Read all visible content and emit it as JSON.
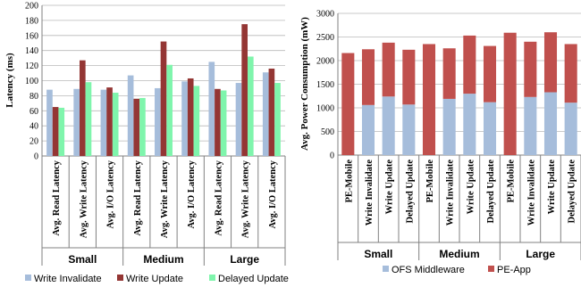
{
  "chart_data": [
    {
      "type": "bar",
      "ylabel": "Latency (ms)",
      "ylim": [
        0,
        200
      ],
      "ytick_step": 20,
      "grid": true,
      "legend_position": "bottom",
      "groups": [
        "Small",
        "Medium",
        "Large"
      ],
      "categories": [
        "Avg. Read Latency",
        "Avg. Write Latency",
        "Avg. I/O Latency",
        "Avg. Read Latency",
        "Avg. Write Latency",
        "Avg. I/O Latency",
        "Avg. Read Latency",
        "Avg. Write Latency",
        "Avg. I/O Latency"
      ],
      "series": [
        {
          "name": "Write Invalidate",
          "color": "#A6BDDB",
          "values": [
            88,
            89,
            88,
            107,
            90,
            99,
            125,
            97,
            111
          ]
        },
        {
          "name": "Write Update",
          "color": "#943634",
          "values": [
            65,
            127,
            91,
            76,
            152,
            103,
            89,
            175,
            116
          ]
        },
        {
          "name": "Delayed Update",
          "color": "#7FF5AC",
          "values": [
            64,
            98,
            84,
            77,
            121,
            93,
            87,
            132,
            97
          ]
        }
      ]
    },
    {
      "type": "bar",
      "stacked": true,
      "ylabel": "Avg. Power Consumption (mW)",
      "ylim": [
        0,
        3000
      ],
      "ytick_step": 500,
      "grid": true,
      "legend_position": "bottom",
      "groups": [
        "Small",
        "Medium",
        "Large"
      ],
      "categories": [
        "PE-Mobile",
        "Write Invalidate",
        "Write Update",
        "Delayed Update",
        "PE-Mobile",
        "Write Invalidate",
        "Write Update",
        "Delayed Update",
        "PE-Mobile",
        "Write Invalidate",
        "Write Update",
        "Delayed Update"
      ],
      "series": [
        {
          "name": "OFS Middleware",
          "color": "#A6BDDB",
          "values": [
            0,
            1060,
            1240,
            1070,
            0,
            1190,
            1300,
            1120,
            0,
            1230,
            1330,
            1110
          ]
        },
        {
          "name": "PE-App",
          "color": "#C0504D",
          "values": [
            2160,
            1180,
            1140,
            1160,
            2350,
            1070,
            1230,
            1190,
            2590,
            1170,
            1270,
            1240
          ]
        }
      ]
    }
  ]
}
